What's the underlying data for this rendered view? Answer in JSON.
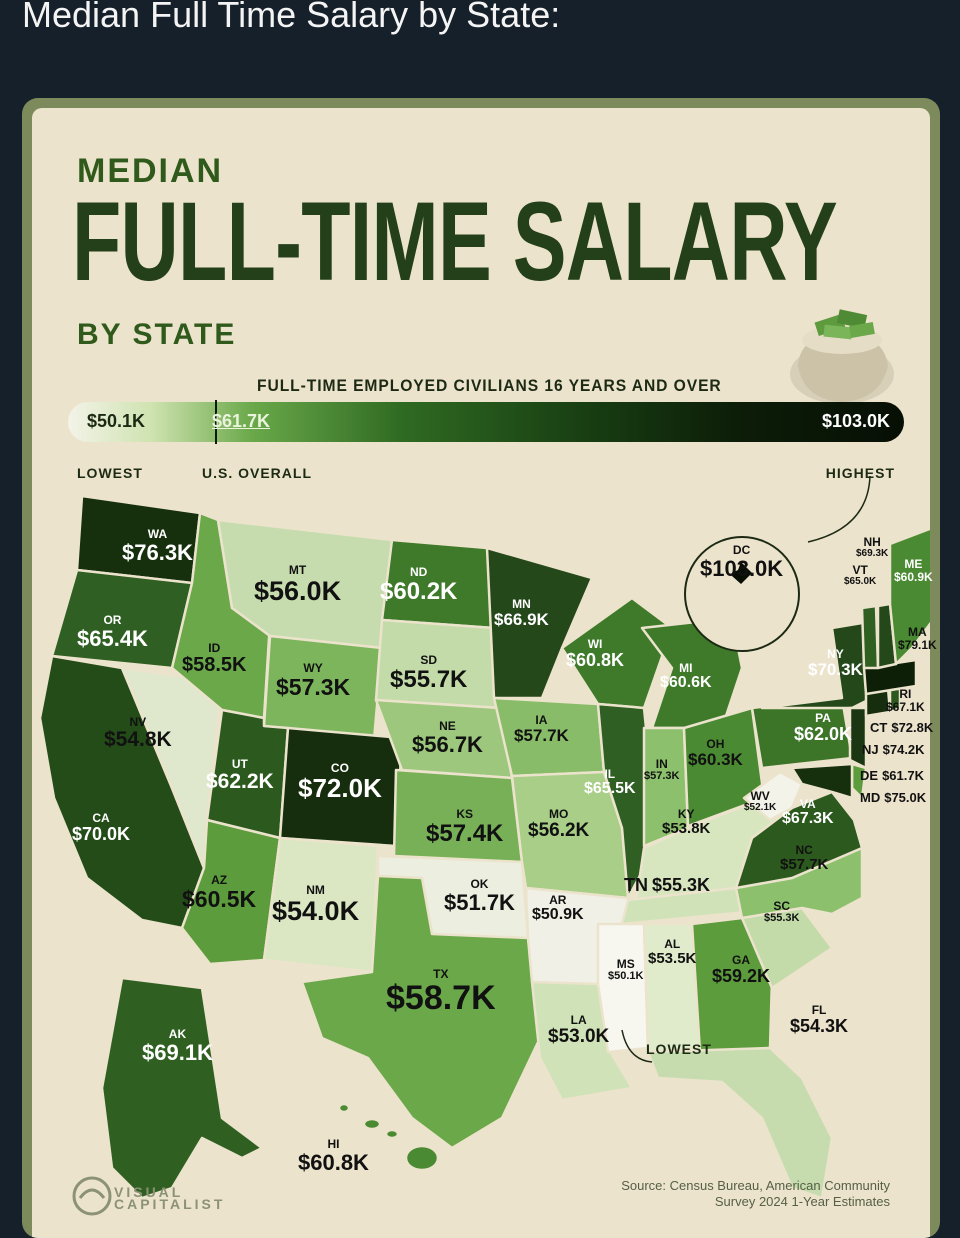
{
  "post_title": "Median Full Time Salary by State:",
  "infographic": {
    "title_top": "MEDIAN",
    "title_main": "FULL-TIME SALARY",
    "title_bottom": "BY STATE",
    "subtitle": "FULL-TIME EMPLOYED CIVILIANS 16 YEARS AND OVER",
    "legend": {
      "lowest_value": "$50.1K",
      "us_value": "$61.7K",
      "highest_value": "$103.0K",
      "lowest_caption": "LOWEST",
      "us_caption": "U.S. OVERALL",
      "highest_caption": "HIGHEST"
    },
    "annotation_lowest": "LOWEST",
    "source_line1": "Source: Census Bureau, American Community",
    "source_line2": "Survey 2024 1-Year Estimates",
    "logo_line1": "VISUAL",
    "logo_line2": "CAPITALIST",
    "colors": {
      "lightest": "#f3f3e8",
      "light": "#cfe3b0",
      "mid": "#6aa84a",
      "dark": "#2f6a22",
      "darkest": "#0c1d08",
      "paper": "#ece3cc"
    }
  },
  "states": [
    {
      "code": "WA",
      "value": "$76.3K"
    },
    {
      "code": "OR",
      "value": "$65.4K"
    },
    {
      "code": "CA",
      "value": "$70.0K"
    },
    {
      "code": "NV",
      "value": "$54.8K"
    },
    {
      "code": "ID",
      "value": "$58.5K"
    },
    {
      "code": "MT",
      "value": "$56.0K"
    },
    {
      "code": "WY",
      "value": "$57.3K"
    },
    {
      "code": "UT",
      "value": "$62.2K"
    },
    {
      "code": "AZ",
      "value": "$60.5K"
    },
    {
      "code": "CO",
      "value": "$72.0K"
    },
    {
      "code": "NM",
      "value": "$54.0K"
    },
    {
      "code": "ND",
      "value": "$60.2K"
    },
    {
      "code": "SD",
      "value": "$55.7K"
    },
    {
      "code": "NE",
      "value": "$56.7K"
    },
    {
      "code": "KS",
      "value": "$57.4K"
    },
    {
      "code": "OK",
      "value": "$51.7K"
    },
    {
      "code": "TX",
      "value": "$58.7K"
    },
    {
      "code": "MN",
      "value": "$66.9K"
    },
    {
      "code": "IA",
      "value": "$57.7K"
    },
    {
      "code": "MO",
      "value": "$56.2K"
    },
    {
      "code": "AR",
      "value": "$50.9K"
    },
    {
      "code": "LA",
      "value": "$53.0K"
    },
    {
      "code": "WI",
      "value": "$60.8K"
    },
    {
      "code": "IL",
      "value": "$65.5K"
    },
    {
      "code": "MI",
      "value": "$60.6K"
    },
    {
      "code": "IN",
      "value": "$57.3K"
    },
    {
      "code": "OH",
      "value": "$60.3K"
    },
    {
      "code": "KY",
      "value": "$53.8K"
    },
    {
      "code": "TN",
      "value": "$55.3K"
    },
    {
      "code": "MS",
      "value": "$50.1K"
    },
    {
      "code": "AL",
      "value": "$53.5K"
    },
    {
      "code": "GA",
      "value": "$59.2K"
    },
    {
      "code": "FL",
      "value": "$54.3K"
    },
    {
      "code": "SC",
      "value": "$55.3K"
    },
    {
      "code": "NC",
      "value": "$57.7K"
    },
    {
      "code": "VA",
      "value": "$67.3K"
    },
    {
      "code": "WV",
      "value": "$52.1K"
    },
    {
      "code": "PA",
      "value": "$62.0K"
    },
    {
      "code": "NY",
      "value": "$70.3K"
    },
    {
      "code": "NJ",
      "value": "$74.2K"
    },
    {
      "code": "DE",
      "value": "$61.7K"
    },
    {
      "code": "MD",
      "value": "$75.0K"
    },
    {
      "code": "CT",
      "value": "$72.8K"
    },
    {
      "code": "RI",
      "value": "$67.1K"
    },
    {
      "code": "MA",
      "value": "$79.1K"
    },
    {
      "code": "VT",
      "value": "$65.0K"
    },
    {
      "code": "NH",
      "value": "$69.3K"
    },
    {
      "code": "ME",
      "value": "$60.9K"
    },
    {
      "code": "DC",
      "value": "$103.0K"
    },
    {
      "code": "AK",
      "value": "$69.1K"
    },
    {
      "code": "HI",
      "value": "$60.8K"
    }
  ]
}
